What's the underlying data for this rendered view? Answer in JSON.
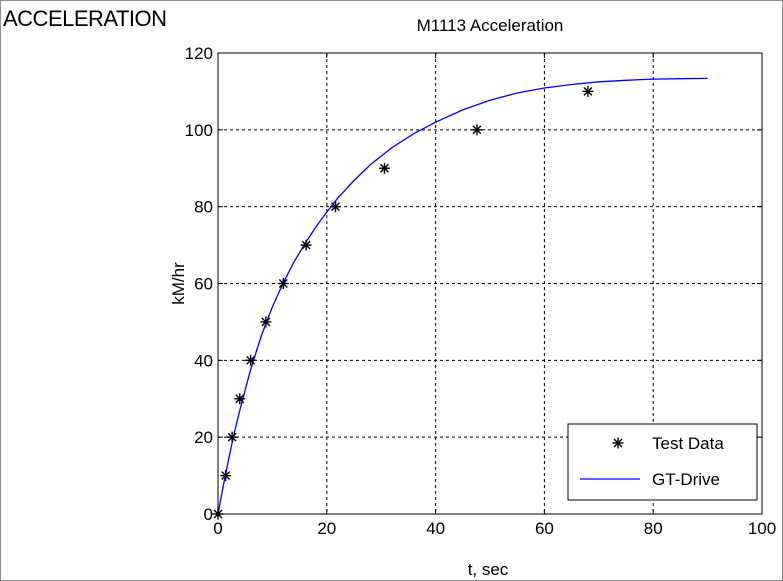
{
  "page": {
    "section_label": "ACCELERATION"
  },
  "chart_data": {
    "type": "line",
    "title": "M1113 Acceleration",
    "xlabel": "t, sec",
    "ylabel": "kM/hr",
    "xlim": [
      0,
      100
    ],
    "ylim": [
      0,
      120
    ],
    "xticks": [
      0,
      20,
      40,
      60,
      80,
      100
    ],
    "yticks": [
      0,
      20,
      40,
      60,
      80,
      100,
      120
    ],
    "grid": true,
    "legend_position": "bottom-right",
    "series": [
      {
        "name": "Test Data",
        "style": "markers",
        "marker": "asterisk",
        "color": "#000000",
        "x": [
          0,
          1.4,
          2.6,
          4,
          6,
          8.8,
          12,
          16.2,
          21.6,
          30.6,
          47.6,
          68
        ],
        "y": [
          0,
          10,
          20,
          30,
          40,
          50,
          60,
          70,
          80,
          90,
          100,
          110
        ]
      },
      {
        "name": "GT-Drive",
        "style": "line",
        "color": "#0000ff",
        "x": [
          0,
          1,
          2,
          3,
          4,
          6,
          8,
          10,
          12,
          14,
          16,
          18,
          20,
          22,
          25,
          28,
          32,
          36,
          40,
          45,
          50,
          55,
          60,
          65,
          70,
          75,
          80,
          85,
          90
        ],
        "y": [
          0,
          7.5,
          14.6,
          21.1,
          27,
          37.6,
          46.5,
          53.9,
          60.2,
          65.7,
          70.4,
          74.7,
          78.6,
          82.2,
          86.8,
          90.9,
          95.4,
          99.0,
          102.0,
          105.2,
          107.7,
          109.6,
          110.9,
          111.8,
          112.5,
          112.9,
          113.2,
          113.3,
          113.4
        ]
      }
    ]
  }
}
